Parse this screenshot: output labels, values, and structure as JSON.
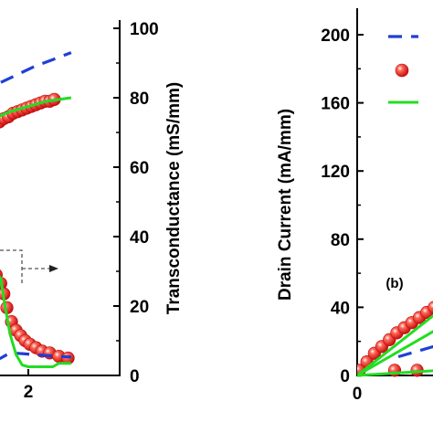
{
  "chart_data": [
    {
      "type": "line",
      "panel_label": "",
      "xlabel": "",
      "ylabel": "Transconductance (mS/mm)",
      "x_ticks": [
        "2"
      ],
      "y_ticks": [
        "0",
        "20",
        "40",
        "60",
        "80",
        "100"
      ],
      "ylim": [
        0,
        100
      ],
      "right_axis": true,
      "series": [
        {
          "style": "dashed-line",
          "color": "#1f3fd6",
          "x": [
            -0.2,
            0.4,
            1.0,
            1.6,
            2.2,
            2.8,
            3.4
          ],
          "y": [
            78,
            81,
            84,
            86.5,
            89,
            91,
            93
          ]
        },
        {
          "style": "solid-line",
          "color": "#22dd22",
          "x": [
            -0.2,
            0.2,
            0.6,
            1.0,
            1.4,
            1.8,
            2.2,
            2.6,
            3.0,
            3.4
          ],
          "y": [
            66,
            70,
            72.5,
            74.5,
            76,
            77,
            78,
            79,
            79.5,
            80
          ]
        },
        {
          "style": "markers",
          "color": "#e52020",
          "x": [
            -0.2,
            0.0,
            0.15,
            0.3,
            0.45,
            0.6,
            0.75,
            0.9,
            1.05,
            1.2,
            1.35,
            1.5,
            1.65,
            1.8,
            1.95,
            2.1,
            2.25,
            2.4,
            2.55,
            2.7,
            2.85
          ],
          "y": [
            65.5,
            67,
            68,
            69,
            70,
            71,
            72,
            72.5,
            73,
            74,
            74.5,
            75.5,
            76,
            76.5,
            77,
            77.5,
            78,
            78.5,
            79,
            79,
            79.5
          ]
        },
        {
          "style": "dashed-line",
          "color": "#1f3fd6",
          "x": [
            0.2,
            0.5,
            0.8,
            1.1,
            1.4,
            1.8,
            2.2,
            2.8,
            3.4
          ],
          "y": [
            6,
            5,
            4,
            5,
            6.5,
            6.3,
            6,
            5.6,
            5.3
          ]
        },
        {
          "style": "solid-line",
          "color": "#22dd22",
          "x": [
            -0.2,
            0.4,
            0.8,
            1.1,
            1.2,
            1.4,
            1.6,
            1.8,
            2.0,
            2.4,
            2.8,
            3.0,
            3.4
          ],
          "y": [
            32,
            31.5,
            30.5,
            28,
            22,
            12,
            6,
            3,
            2.5,
            2.5,
            2.5,
            3.5,
            3.5
          ]
        },
        {
          "style": "markers",
          "color": "#e52020",
          "x": [
            0.8,
            0.95,
            1.1,
            1.2,
            1.3,
            1.45,
            1.6,
            1.75,
            1.9,
            2.05,
            2.25,
            2.45,
            2.7,
            3.0,
            3.3
          ],
          "y": [
            31,
            29,
            26.5,
            23.5,
            19.5,
            15.5,
            13,
            11.5,
            10,
            9,
            8,
            7,
            6.5,
            5.5,
            5
          ]
        }
      ],
      "annotation": {
        "type": "dashed-box-with-arrow",
        "arrow_direction": "right"
      }
    },
    {
      "type": "line",
      "panel_label": "(b)",
      "xlabel": "",
      "ylabel": "Drain Current (mA/mm)",
      "x_ticks": [
        "0"
      ],
      "y_ticks": [
        "0",
        "40",
        "80",
        "120",
        "160",
        "200"
      ],
      "ylim": [
        0,
        200
      ],
      "legend_position": "top-right",
      "legend_entries": [
        {
          "style": "dashed-line",
          "color": "#1f3fd6"
        },
        {
          "style": "markers",
          "color": "#e52020"
        },
        {
          "style": "solid-line",
          "color": "#22dd22"
        }
      ],
      "series": [
        {
          "style": "markers",
          "color": "#e52020",
          "x": [
            0.03,
            0.13,
            0.23,
            0.33,
            0.43,
            0.53,
            0.63,
            0.73,
            0.83,
            0.93,
            1.03
          ],
          "y": [
            3,
            8,
            13,
            17,
            21,
            25,
            28,
            31,
            34,
            37,
            40
          ]
        },
        {
          "style": "markers",
          "color": "#e52020",
          "x": [
            0.5,
            0.8,
            1.1
          ],
          "y": [
            3,
            3,
            3
          ]
        },
        {
          "style": "solid-line",
          "color": "#22dd22",
          "x": [
            0.0,
            1.1
          ],
          "y": [
            0,
            38
          ]
        },
        {
          "style": "solid-line",
          "color": "#22dd22",
          "x": [
            0.0,
            1.1
          ],
          "y": [
            0,
            28
          ]
        },
        {
          "style": "solid-line",
          "color": "#22dd22",
          "x": [
            0.0,
            1.1
          ],
          "y": [
            0,
            3
          ]
        },
        {
          "style": "dashed-line",
          "color": "#1f3fd6",
          "x": [
            0.55,
            1.1
          ],
          "y": [
            11,
            18
          ]
        }
      ]
    }
  ]
}
